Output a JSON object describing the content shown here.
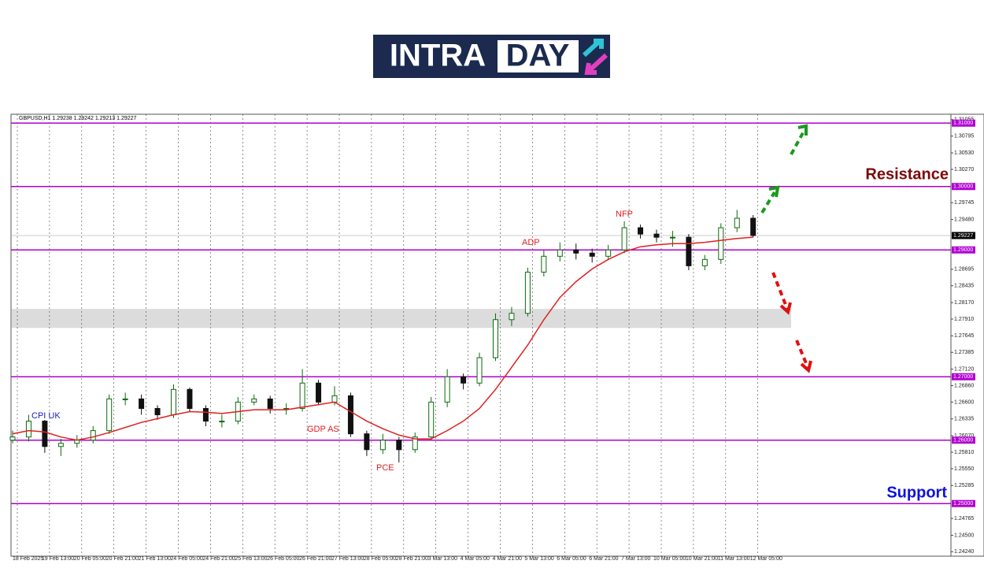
{
  "logo": {
    "left": "INTRA",
    "right": "DAY"
  },
  "chart_data": {
    "type": "candlestick",
    "header": "GBPUSD,H1  1.29238 1.29242 1.29213 1.29227",
    "up_color": "#0b6b0b",
    "down_color": "#111111",
    "ma_color": "#e02020",
    "level_color": "#b000d0",
    "zone_color": "#dcdcdc",
    "ylim": [
      1.2417,
      1.3114
    ],
    "yticks": [
      1.31055,
      1.30795,
      {
        "value": 1.3053,
        "label": "1.30530"
      },
      {
        "value": 1.3027,
        "label": "1.30270"
      },
      1.29745,
      {
        "value": 1.2948,
        "label": "1.29480"
      },
      1.28695,
      1.28435,
      {
        "value": 1.2817,
        "label": "1.28170"
      },
      {
        "value": 1.2791,
        "label": "1.27910"
      },
      1.27645,
      1.27385,
      {
        "value": 1.2712,
        "label": "1.27120"
      },
      {
        "value": 1.2686,
        "label": "1.26860"
      },
      {
        "value": 1.266,
        "label": "1.26600"
      },
      1.26335,
      {
        "value": 1.2607,
        "label": "1.26070"
      },
      {
        "value": 1.2581,
        "label": "1.25810"
      },
      {
        "value": 1.2555,
        "label": "1.25550"
      },
      1.25285,
      1.24765,
      {
        "value": 1.245,
        "label": "1.24500"
      },
      {
        "value": 1.2424,
        "label": "1.24240"
      }
    ],
    "levels": [
      {
        "value": 1.31,
        "label": "1.31000"
      },
      {
        "value": 1.3,
        "label": "1.30000"
      },
      {
        "value": 1.29,
        "label": "1.29000"
      },
      {
        "value": 1.27,
        "label": "1.27000"
      },
      {
        "value": 1.26,
        "label": "1.26000"
      },
      {
        "value": 1.25,
        "label": "1.25000"
      }
    ],
    "current": {
      "value": 1.29227,
      "label": "1.29227"
    },
    "zone": [
      1.2777,
      1.2807
    ],
    "categories": [
      "18 Feb 2025",
      null,
      "19 Feb 13:00",
      null,
      "20 Feb 05:00",
      null,
      "20 Feb 21:00",
      null,
      "21 Feb 13:00",
      null,
      "24 Feb 05:00",
      null,
      "24 Feb 21:00",
      null,
      "25 Feb 13:00",
      null,
      "26 Feb 05:00",
      null,
      "26 Feb 21:00",
      null,
      "27 Feb 13:00",
      null,
      "28 Feb 05:00",
      null,
      "28 Feb 21:00",
      null,
      "3 Mar 13:00",
      null,
      "4 Mar 05:00",
      null,
      "4 Mar 21:00",
      null,
      "5 Mar 13:00",
      null,
      "6 Mar 05:00",
      null,
      "6 Mar 21:00",
      null,
      "7 Mar 13:00",
      null,
      "10 Mar 05:00",
      null,
      "10 Mar 21:00",
      null,
      "11 Mar 13:00",
      null,
      "12 Mar 05:00"
    ],
    "open": [
      1.26,
      1.2605,
      1.263,
      1.259,
      1.2595,
      1.26,
      1.2615,
      1.2665,
      1.2665,
      1.265,
      1.264,
      1.268,
      1.265,
      1.263,
      1.263,
      1.266,
      1.2665,
      1.265,
      1.265,
      1.269,
      1.266,
      1.267,
      1.261,
      1.2585,
      1.26,
      1.2585,
      1.2605,
      1.266,
      1.27,
      1.269,
      1.273,
      1.279,
      1.28,
      1.2865,
      1.289,
      1.29,
      1.2895,
      1.289,
      1.29,
      1.2935,
      1.2925,
      1.292,
      1.292,
      1.2875,
      1.2885,
      1.2935,
      1.295
    ],
    "high": [
      1.2615,
      1.264,
      1.2632,
      1.2602,
      1.2608,
      1.2622,
      1.2672,
      1.2675,
      1.2672,
      1.2655,
      1.2688,
      1.2683,
      1.2655,
      1.264,
      1.2668,
      1.2672,
      1.267,
      1.2658,
      1.2712,
      1.2695,
      1.2685,
      1.2675,
      1.2615,
      1.261,
      1.2605,
      1.2612,
      1.2668,
      1.2712,
      1.2705,
      1.2738,
      1.28,
      1.281,
      1.2872,
      1.29,
      1.2912,
      1.291,
      1.2902,
      1.2908,
      1.2945,
      1.294,
      1.2932,
      1.293,
      1.2925,
      1.2892,
      1.2942,
      1.2963,
      1.2955
    ],
    "low": [
      1.2595,
      1.2598,
      1.258,
      1.2575,
      1.2588,
      1.2595,
      1.261,
      1.2655,
      1.264,
      1.2632,
      1.2635,
      1.2645,
      1.2622,
      1.262,
      1.2625,
      1.2655,
      1.2642,
      1.264,
      1.2645,
      1.2655,
      1.2655,
      1.2605,
      1.2575,
      1.2578,
      1.2565,
      1.258,
      1.26,
      1.2652,
      1.268,
      1.2685,
      1.2725,
      1.278,
      1.2795,
      1.2858,
      1.2882,
      1.2885,
      1.288,
      1.2885,
      1.2895,
      1.2918,
      1.2912,
      1.2905,
      1.2868,
      1.2868,
      1.2878,
      1.2928,
      1.292
    ],
    "close": [
      1.2605,
      1.263,
      1.259,
      1.2595,
      1.26,
      1.2615,
      1.2665,
      1.2665,
      1.265,
      1.264,
      1.268,
      1.265,
      1.263,
      1.263,
      1.266,
      1.2665,
      1.265,
      1.265,
      1.269,
      1.266,
      1.267,
      1.261,
      1.2585,
      1.26,
      1.2585,
      1.2605,
      1.266,
      1.27,
      1.269,
      1.273,
      1.279,
      1.28,
      1.2865,
      1.289,
      1.29,
      1.2895,
      1.289,
      1.29,
      1.2935,
      1.2925,
      1.292,
      1.292,
      1.2875,
      1.2885,
      1.2935,
      1.295,
      1.29227
    ],
    "ma": [
      1.261,
      1.2615,
      1.2613,
      1.2605,
      1.26,
      1.2605,
      1.2612,
      1.262,
      1.2628,
      1.2634,
      1.264,
      1.2645,
      1.2644,
      1.2642,
      1.2645,
      1.2648,
      1.2648,
      1.2648,
      1.2652,
      1.2656,
      1.266,
      1.2645,
      1.263,
      1.2618,
      1.2608,
      1.2602,
      1.2602,
      1.2615,
      1.263,
      1.265,
      1.268,
      1.2715,
      1.275,
      1.279,
      1.2825,
      1.285,
      1.287,
      1.2885,
      1.2897,
      1.2905,
      1.2908,
      1.291,
      1.291,
      1.2912,
      1.2915,
      1.2918,
      1.292
    ],
    "annotations": [
      {
        "text": "CPI UK",
        "color": "#2020c0"
      },
      {
        "text": "GDP AS",
        "color": "#e02020"
      },
      {
        "text": "PCE",
        "color": "#e02020"
      },
      {
        "text": "ADP",
        "color": "#e02020"
      },
      {
        "text": "NFP",
        "color": "#e02020"
      }
    ],
    "resistance": "Resistance",
    "support": "Support"
  }
}
